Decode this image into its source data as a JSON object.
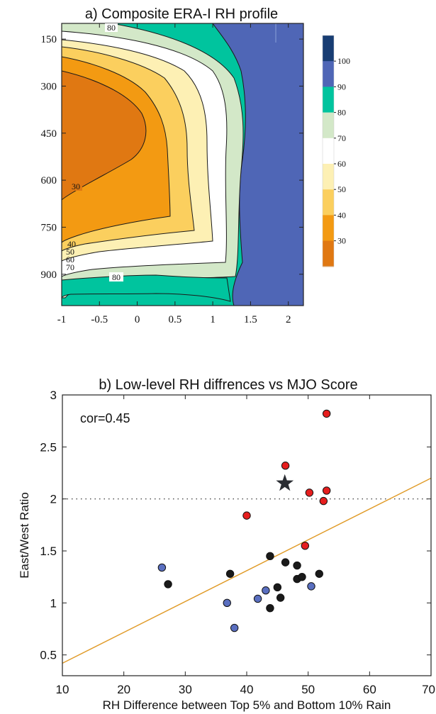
{
  "panel_a": {
    "title": "a) Composite ERA-I RH profile",
    "chart_data": {
      "type": "heatmap",
      "title": "a) Composite ERA-I RH profile",
      "x_ticks": [
        "-1",
        "-0.5",
        "0",
        "0.5",
        "1",
        "1.5",
        "2"
      ],
      "y_ticks": [
        "150",
        "300",
        "450",
        "600",
        "750",
        "900"
      ],
      "xlim": [
        -1,
        2.2
      ],
      "ylim": [
        1000,
        100
      ],
      "contour_labels": [
        "80",
        "30",
        "40",
        "50",
        "60",
        "70",
        "80"
      ],
      "colorbar_levels": [
        "100",
        "90",
        "80",
        "70",
        "60",
        "50",
        "40",
        "30"
      ],
      "colors": [
        "#e07812",
        "#f39a12",
        "#fbcf5e",
        "#fdf0b4",
        "#ffffff",
        "#d3e8c8",
        "#00c49e",
        "#4f66b6",
        "#183d73"
      ]
    }
  },
  "panel_b": {
    "title": "b) Low-level RH diffrences vs MJO Score",
    "chart_data": {
      "type": "scatter",
      "title": "b) Low-level RH diffrences vs MJO Score",
      "xlabel": "RH Difference between Top 5% and Bottom 10% Rain",
      "ylabel": "East/West Ratio",
      "xlim": [
        10,
        70
      ],
      "ylim": [
        0.3,
        3
      ],
      "x_ticks": [
        "10",
        "20",
        "30",
        "40",
        "50",
        "60",
        "70"
      ],
      "y_ticks": [
        "0.5",
        "1",
        "1.5",
        "2",
        "2.5",
        "3"
      ],
      "annotation": "cor=0.45",
      "reference_line_y": 2,
      "fit_line": {
        "x": [
          10,
          70
        ],
        "y": [
          0.42,
          2.2
        ]
      },
      "star": {
        "x": 46.2,
        "y": 2.15
      },
      "series": [
        {
          "color": "#e61e1e",
          "points": [
            [
              53,
              2.82
            ],
            [
              46.3,
              2.32
            ],
            [
              50.2,
              2.06
            ],
            [
              53,
              2.08
            ],
            [
              52.5,
              1.98
            ],
            [
              40,
              1.84
            ],
            [
              49.5,
              1.55
            ]
          ]
        },
        {
          "color": "#1a1a1a",
          "points": [
            [
              27.2,
              1.18
            ],
            [
              37.3,
              1.28
            ],
            [
              43.8,
              1.45
            ],
            [
              46.3,
              1.39
            ],
            [
              48.2,
              1.36
            ],
            [
              48.2,
              1.23
            ],
            [
              49,
              1.25
            ],
            [
              51.8,
              1.28
            ],
            [
              45,
              1.15
            ],
            [
              45.5,
              1.05
            ],
            [
              43.8,
              0.95
            ]
          ]
        },
        {
          "color": "#5a6fc0",
          "points": [
            [
              26.2,
              1.34
            ],
            [
              36.8,
              1.0
            ],
            [
              38,
              0.76
            ],
            [
              41.8,
              1.04
            ],
            [
              43.1,
              1.12
            ],
            [
              50.5,
              1.16
            ]
          ]
        }
      ],
      "colors": {
        "fit_line": "#e09a26",
        "star": "#2a2d33"
      }
    }
  }
}
